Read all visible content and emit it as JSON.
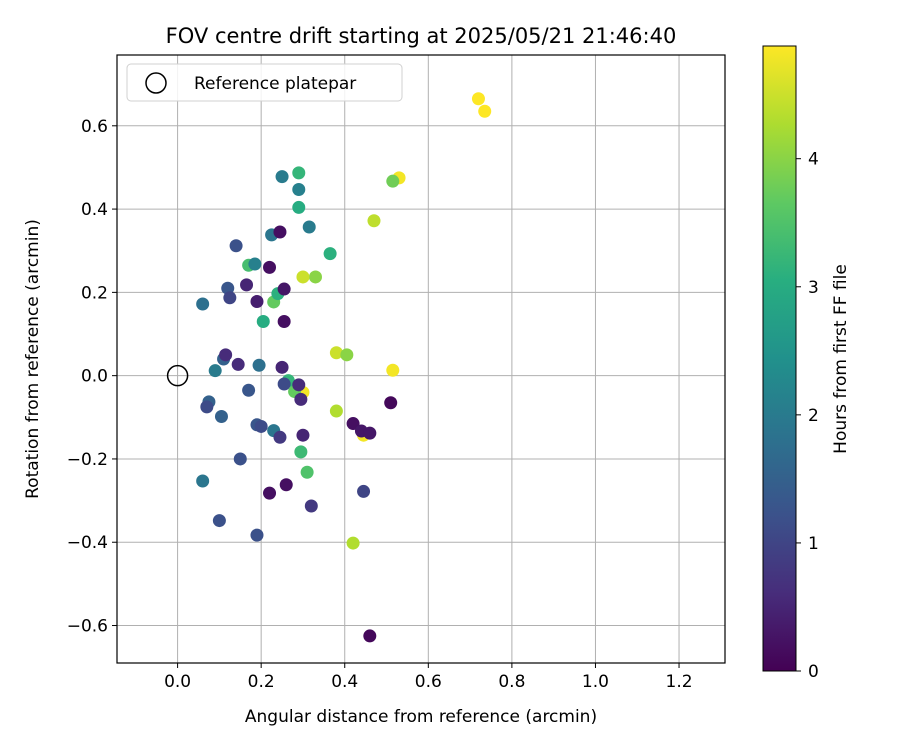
{
  "chart_data": {
    "type": "scatter",
    "title": "FOV centre drift starting at 2025/05/21 21:46:40",
    "xlabel": "Angular distance from reference (arcmin)",
    "ylabel": "Rotation from reference (arcmin)",
    "xlim": [
      -0.145,
      1.31
    ],
    "ylim": [
      -0.69,
      0.77
    ],
    "xticks": [
      0.0,
      0.2,
      0.4,
      0.6,
      0.8,
      1.0,
      1.2
    ],
    "xtick_labels": [
      "0.0",
      "0.2",
      "0.4",
      "0.6",
      "0.8",
      "1.0",
      "1.2"
    ],
    "yticks": [
      -0.6,
      -0.4,
      -0.2,
      0.0,
      0.2,
      0.4,
      0.6
    ],
    "ytick_labels": [
      "−0.6",
      "−0.4",
      "−0.2",
      "0.0",
      "0.2",
      "0.4",
      "0.6"
    ],
    "grid": true,
    "legend": {
      "placement": "top-left",
      "entries": [
        {
          "label": "Reference platepar",
          "marker": "open-circle"
        }
      ]
    },
    "reference_point": {
      "x": 0.0,
      "y": 0.0
    },
    "colorbar": {
      "label": "Hours from first FF file",
      "range": [
        0,
        4.88
      ],
      "ticks": [
        0,
        1,
        2,
        3,
        4
      ],
      "tick_labels": [
        "0",
        "1",
        "2",
        "3",
        "4"
      ],
      "colormap": "viridis"
    },
    "points": [
      {
        "x": 0.72,
        "y": 0.665,
        "c": 4.88
      },
      {
        "x": 0.735,
        "y": 0.635,
        "c": 4.88
      },
      {
        "x": 0.53,
        "y": 0.475,
        "c": 4.8
      },
      {
        "x": 0.515,
        "y": 0.467,
        "c": 3.8
      },
      {
        "x": 0.47,
        "y": 0.372,
        "c": 4.4
      },
      {
        "x": 0.33,
        "y": 0.237,
        "c": 4.0
      },
      {
        "x": 0.3,
        "y": 0.237,
        "c": 4.5
      },
      {
        "x": 0.38,
        "y": 0.055,
        "c": 4.5
      },
      {
        "x": 0.405,
        "y": 0.05,
        "c": 4.0
      },
      {
        "x": 0.515,
        "y": 0.013,
        "c": 4.8
      },
      {
        "x": 0.3,
        "y": -0.04,
        "c": 4.8
      },
      {
        "x": 0.38,
        "y": -0.085,
        "c": 4.3
      },
      {
        "x": 0.445,
        "y": -0.143,
        "c": 4.8
      },
      {
        "x": 0.42,
        "y": -0.402,
        "c": 4.3
      },
      {
        "x": 0.28,
        "y": -0.038,
        "c": 3.7
      },
      {
        "x": 0.29,
        "y": 0.487,
        "c": 3.2
      },
      {
        "x": 0.29,
        "y": 0.404,
        "c": 3.0
      },
      {
        "x": 0.365,
        "y": 0.293,
        "c": 3.1
      },
      {
        "x": 0.17,
        "y": 0.265,
        "c": 3.4
      },
      {
        "x": 0.23,
        "y": 0.177,
        "c": 3.7
      },
      {
        "x": 0.24,
        "y": 0.197,
        "c": 3.1
      },
      {
        "x": 0.205,
        "y": 0.13,
        "c": 3.0
      },
      {
        "x": 0.265,
        "y": -0.012,
        "c": 3.2
      },
      {
        "x": 0.295,
        "y": -0.183,
        "c": 3.3
      },
      {
        "x": 0.31,
        "y": -0.232,
        "c": 3.5
      },
      {
        "x": 0.25,
        "y": 0.478,
        "c": 2.0
      },
      {
        "x": 0.29,
        "y": 0.447,
        "c": 2.1
      },
      {
        "x": 0.315,
        "y": 0.357,
        "c": 2.0
      },
      {
        "x": 0.225,
        "y": 0.338,
        "c": 1.9
      },
      {
        "x": 0.185,
        "y": 0.268,
        "c": 2.1
      },
      {
        "x": 0.06,
        "y": 0.172,
        "c": 1.8
      },
      {
        "x": 0.09,
        "y": 0.012,
        "c": 2.0
      },
      {
        "x": 0.195,
        "y": 0.025,
        "c": 1.8
      },
      {
        "x": 0.23,
        "y": -0.132,
        "c": 1.9
      },
      {
        "x": 0.06,
        "y": -0.253,
        "c": 1.9
      },
      {
        "x": 0.11,
        "y": 0.04,
        "c": 1.5
      },
      {
        "x": 0.12,
        "y": 0.21,
        "c": 1.3
      },
      {
        "x": 0.105,
        "y": -0.098,
        "c": 1.5
      },
      {
        "x": 0.075,
        "y": -0.063,
        "c": 1.5
      },
      {
        "x": 0.14,
        "y": 0.312,
        "c": 1.2
      },
      {
        "x": 0.125,
        "y": 0.187,
        "c": 1.0
      },
      {
        "x": 0.17,
        "y": -0.035,
        "c": 1.3
      },
      {
        "x": 0.19,
        "y": -0.118,
        "c": 1.3
      },
      {
        "x": 0.15,
        "y": -0.2,
        "c": 1.2
      },
      {
        "x": 0.1,
        "y": -0.348,
        "c": 1.2
      },
      {
        "x": 0.19,
        "y": -0.383,
        "c": 1.2
      },
      {
        "x": 0.07,
        "y": -0.075,
        "c": 1.1
      },
      {
        "x": 0.2,
        "y": -0.122,
        "c": 1.1
      },
      {
        "x": 0.255,
        "y": -0.02,
        "c": 1.1
      },
      {
        "x": 0.445,
        "y": -0.278,
        "c": 1.0
      },
      {
        "x": 0.32,
        "y": -0.313,
        "c": 0.8
      },
      {
        "x": 0.245,
        "y": -0.148,
        "c": 0.8
      },
      {
        "x": 0.165,
        "y": 0.218,
        "c": 0.5
      },
      {
        "x": 0.19,
        "y": 0.178,
        "c": 0.4
      },
      {
        "x": 0.115,
        "y": 0.05,
        "c": 0.6
      },
      {
        "x": 0.145,
        "y": 0.027,
        "c": 0.6
      },
      {
        "x": 0.25,
        "y": 0.02,
        "c": 0.5
      },
      {
        "x": 0.29,
        "y": -0.022,
        "c": 0.6
      },
      {
        "x": 0.295,
        "y": -0.057,
        "c": 0.6
      },
      {
        "x": 0.3,
        "y": -0.143,
        "c": 0.5
      },
      {
        "x": 0.245,
        "y": 0.345,
        "c": 0.2
      },
      {
        "x": 0.22,
        "y": 0.26,
        "c": 0.2
      },
      {
        "x": 0.255,
        "y": 0.208,
        "c": 0.3
      },
      {
        "x": 0.255,
        "y": 0.13,
        "c": 0.2
      },
      {
        "x": 0.51,
        "y": -0.065,
        "c": 0.1
      },
      {
        "x": 0.42,
        "y": -0.115,
        "c": 0.2
      },
      {
        "x": 0.44,
        "y": -0.133,
        "c": 0.3
      },
      {
        "x": 0.46,
        "y": -0.138,
        "c": 0.3
      },
      {
        "x": 0.22,
        "y": -0.282,
        "c": 0.2
      },
      {
        "x": 0.26,
        "y": -0.262,
        "c": 0.2
      },
      {
        "x": 0.46,
        "y": -0.625,
        "c": 0.1
      }
    ]
  }
}
